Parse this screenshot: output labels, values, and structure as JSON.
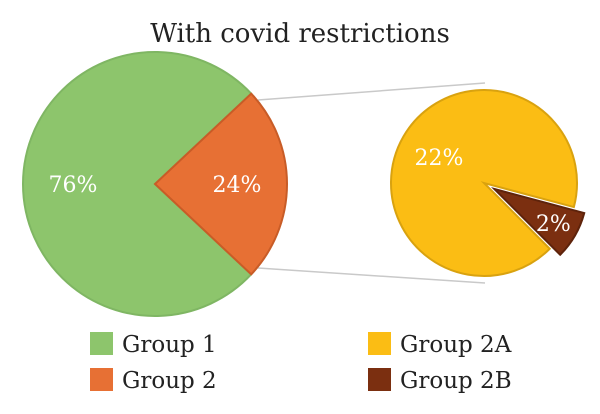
{
  "chart_data": {
    "type": "pie",
    "title": "With covid restrictions",
    "main_pie": {
      "slices": [
        {
          "name": "Group 1",
          "value": 76,
          "label": "76%",
          "color": "#8dc56c",
          "edge": "#7fb663"
        },
        {
          "name": "Group 2",
          "value": 24,
          "label": "24%",
          "color": "#e77034",
          "edge": "#c85c27"
        }
      ]
    },
    "sub_pie": {
      "slices": [
        {
          "name": "Group 2A",
          "value": 22,
          "label": "22%",
          "color": "#fbbd14",
          "edge": "#d9a20f"
        },
        {
          "name": "Group 2B",
          "value": 2,
          "label": "2%",
          "color": "#7b2f10",
          "edge": "#5e230b"
        }
      ]
    },
    "legend": [
      {
        "label": "Group 1",
        "color": "#8dc56c"
      },
      {
        "label": "Group 2",
        "color": "#e77034"
      },
      {
        "label": "Group 2A",
        "color": "#fbbd14"
      },
      {
        "label": "Group 2B",
        "color": "#7b2f10"
      }
    ],
    "legend_position": "bottom"
  }
}
